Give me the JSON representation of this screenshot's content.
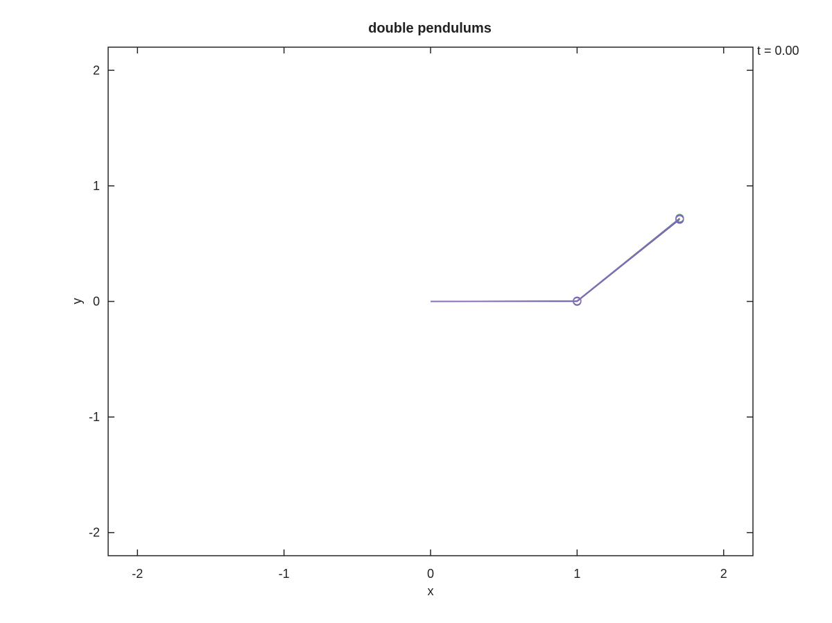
{
  "chart_data": {
    "type": "line",
    "title": "double pendulums",
    "xlabel": "x",
    "ylabel": "y",
    "xlim": [
      -2.2,
      2.2
    ],
    "ylim": [
      -2.2,
      2.2
    ],
    "xticks": [
      -2,
      -1,
      0,
      1,
      2
    ],
    "yticks": [
      -2,
      -1,
      0,
      1,
      2
    ],
    "xtick_labels": [
      "-2",
      "-1",
      "0",
      "1",
      "2"
    ],
    "ytick_labels": [
      "-2",
      "-1",
      "0",
      "1",
      "2"
    ],
    "grid": false,
    "legend": "none",
    "annotation": "t = 0.00",
    "series": [
      {
        "color": "#2ca02c",
        "x": [
          0,
          1.0,
          1.7
        ],
        "y": [
          0,
          0.005,
          0.72
        ]
      },
      {
        "color": "#4444cc",
        "x": [
          0,
          1.0,
          1.7
        ],
        "y": [
          0,
          0.0,
          0.71
        ]
      },
      {
        "color": "#9467bd",
        "x": [
          0,
          1.0,
          1.7
        ],
        "y": [
          0,
          0.003,
          0.715
        ]
      }
    ]
  }
}
